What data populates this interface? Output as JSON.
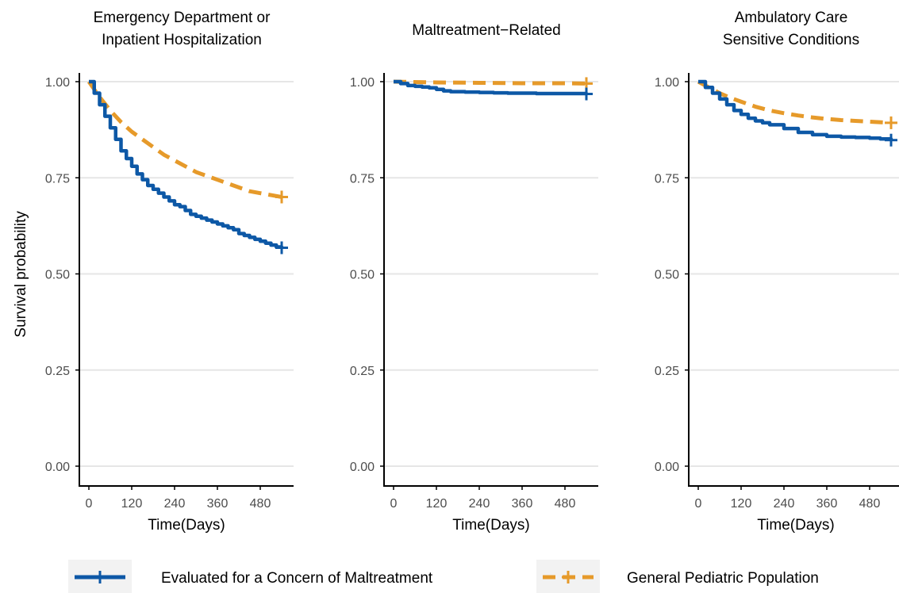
{
  "colors": {
    "maltreatment": "#0D58A6",
    "general": "#E69A2A",
    "grid": "#E6E6E6",
    "axis": "#000000",
    "tick_text": "#4D4D4D"
  },
  "y_axis_label": "Survival probability",
  "x_axis_label": "Time(Days)",
  "legend": {
    "position": "bottom",
    "items": [
      {
        "series": "maltreatment",
        "label": "Evaluated for a Concern of Maltreatment",
        "linestyle": "solid"
      },
      {
        "series": "general",
        "label": "General Pediatric Population",
        "linestyle": "dashed"
      }
    ]
  },
  "chart_data": [
    {
      "type": "line",
      "title_lines": [
        "Emergency Department or",
        "Inpatient Hospitalization"
      ],
      "xlabel": "Time(Days)",
      "ylabel": "Survival probability",
      "xlim": [
        0,
        540
      ],
      "ylim": [
        0,
        1
      ],
      "xticks": [
        0,
        120,
        240,
        360,
        480
      ],
      "yticks": [
        0.0,
        0.25,
        0.5,
        0.75,
        1.0
      ],
      "ytick_labels": [
        "0.00",
        "0.25",
        "0.50",
        "0.75",
        "1.00"
      ],
      "grid": "horizontal",
      "series": [
        {
          "key": "maltreatment",
          "name": "Evaluated for a Concern of Maltreatment",
          "censor_mark": true,
          "x": [
            0,
            15,
            30,
            45,
            60,
            75,
            90,
            105,
            120,
            135,
            150,
            165,
            180,
            195,
            210,
            225,
            240,
            255,
            270,
            285,
            300,
            315,
            330,
            345,
            360,
            375,
            390,
            405,
            420,
            435,
            450,
            465,
            480,
            495,
            510,
            525,
            540
          ],
          "y": [
            1.0,
            0.97,
            0.94,
            0.91,
            0.88,
            0.85,
            0.82,
            0.8,
            0.78,
            0.76,
            0.745,
            0.73,
            0.72,
            0.71,
            0.7,
            0.69,
            0.68,
            0.675,
            0.665,
            0.655,
            0.65,
            0.645,
            0.64,
            0.635,
            0.63,
            0.625,
            0.62,
            0.615,
            0.605,
            0.6,
            0.595,
            0.59,
            0.585,
            0.58,
            0.575,
            0.57,
            0.568
          ]
        },
        {
          "key": "general",
          "name": "General Pediatric Population",
          "censor_mark": true,
          "x": [
            0,
            30,
            60,
            90,
            120,
            150,
            180,
            210,
            240,
            270,
            300,
            330,
            360,
            390,
            420,
            450,
            480,
            510,
            540
          ],
          "y": [
            1.0,
            0.96,
            0.925,
            0.895,
            0.87,
            0.85,
            0.83,
            0.81,
            0.795,
            0.78,
            0.765,
            0.755,
            0.745,
            0.735,
            0.725,
            0.715,
            0.71,
            0.705,
            0.7
          ]
        }
      ]
    },
    {
      "type": "line",
      "title_lines": [
        "Maltreatment−Related"
      ],
      "xlabel": "Time(Days)",
      "ylabel": "",
      "xlim": [
        0,
        540
      ],
      "ylim": [
        0,
        1
      ],
      "xticks": [
        0,
        120,
        240,
        360,
        480
      ],
      "yticks": [
        0.0,
        0.25,
        0.5,
        0.75,
        1.0
      ],
      "ytick_labels": [
        "0.00",
        "0.25",
        "0.50",
        "0.75",
        "1.00"
      ],
      "grid": "horizontal",
      "series": [
        {
          "key": "maltreatment",
          "name": "Evaluated for a Concern of Maltreatment",
          "censor_mark": true,
          "x": [
            0,
            20,
            40,
            60,
            80,
            100,
            120,
            140,
            160,
            200,
            240,
            280,
            320,
            360,
            400,
            440,
            480,
            540
          ],
          "y": [
            1.0,
            0.995,
            0.99,
            0.988,
            0.986,
            0.984,
            0.98,
            0.976,
            0.974,
            0.973,
            0.972,
            0.971,
            0.97,
            0.97,
            0.969,
            0.969,
            0.969,
            0.968
          ]
        },
        {
          "key": "general",
          "name": "General Pediatric Population",
          "censor_mark": true,
          "x": [
            0,
            120,
            240,
            360,
            480,
            540
          ],
          "y": [
            1.0,
            0.998,
            0.997,
            0.996,
            0.996,
            0.995
          ]
        }
      ]
    },
    {
      "type": "line",
      "title_lines": [
        "Ambulatory Care",
        "Sensitive Conditions"
      ],
      "xlabel": "Time(Days)",
      "ylabel": "",
      "xlim": [
        0,
        540
      ],
      "ylim": [
        0,
        1
      ],
      "xticks": [
        0,
        120,
        240,
        360,
        480
      ],
      "yticks": [
        0.0,
        0.25,
        0.5,
        0.75,
        1.0
      ],
      "ytick_labels": [
        "0.00",
        "0.25",
        "0.50",
        "0.75",
        "1.00"
      ],
      "grid": "horizontal",
      "series": [
        {
          "key": "maltreatment",
          "name": "Evaluated for a Concern of Maltreatment",
          "censor_mark": true,
          "x": [
            0,
            20,
            40,
            60,
            80,
            100,
            120,
            140,
            160,
            180,
            200,
            240,
            280,
            320,
            360,
            400,
            440,
            480,
            510,
            540
          ],
          "y": [
            1.0,
            0.985,
            0.97,
            0.955,
            0.94,
            0.925,
            0.915,
            0.905,
            0.898,
            0.893,
            0.888,
            0.878,
            0.868,
            0.862,
            0.858,
            0.856,
            0.855,
            0.853,
            0.851,
            0.848
          ]
        },
        {
          "key": "general",
          "name": "General Pediatric Population",
          "censor_mark": true,
          "x": [
            0,
            30,
            60,
            90,
            120,
            160,
            200,
            240,
            280,
            320,
            360,
            400,
            440,
            480,
            540
          ],
          "y": [
            1.0,
            0.985,
            0.97,
            0.958,
            0.948,
            0.935,
            0.925,
            0.918,
            0.912,
            0.907,
            0.903,
            0.9,
            0.898,
            0.896,
            0.893
          ]
        }
      ]
    }
  ]
}
